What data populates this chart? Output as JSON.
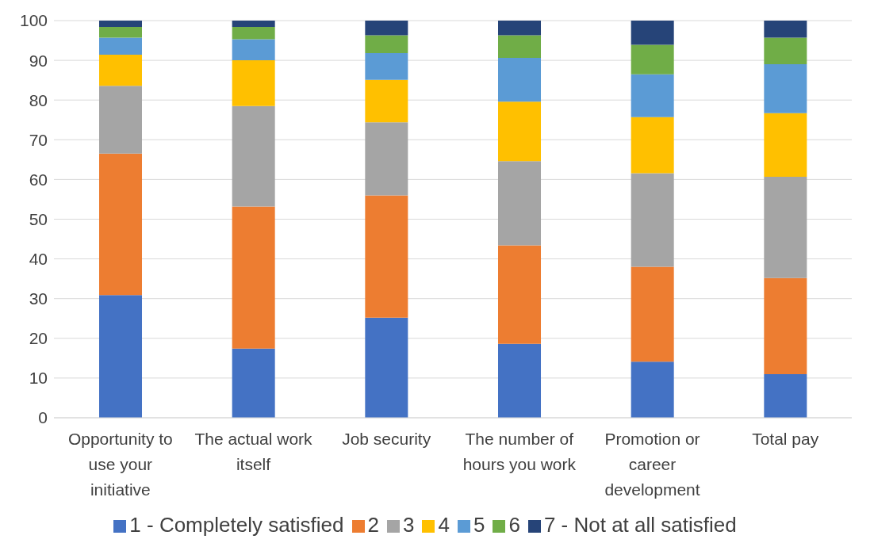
{
  "chart_data": {
    "type": "bar",
    "stacked": true,
    "categories": [
      "Opportunity to use your initiative",
      "The actual work itself",
      "Job security",
      "The number of hours you work",
      "Promotion or career development",
      "Total pay"
    ],
    "series": [
      {
        "name": "1 - Completely satisfied",
        "color": "#4472c4",
        "values": [
          30.9,
          17.4,
          25.2,
          18.6,
          14.1,
          11.0
        ]
      },
      {
        "name": "2",
        "color": "#ed7d31",
        "values": [
          35.6,
          35.8,
          30.8,
          24.8,
          23.9,
          24.2
        ]
      },
      {
        "name": "3",
        "color": "#a5a5a5",
        "values": [
          17.1,
          25.3,
          18.4,
          21.2,
          23.6,
          25.5
        ]
      },
      {
        "name": "4",
        "color": "#ffc000",
        "values": [
          7.8,
          11.5,
          10.7,
          15.0,
          14.1,
          16.0
        ]
      },
      {
        "name": "5",
        "color": "#5b9bd5",
        "values": [
          4.3,
          5.3,
          6.7,
          11.0,
          10.8,
          12.3
        ]
      },
      {
        "name": "6",
        "color": "#70ad47",
        "values": [
          2.7,
          3.1,
          4.5,
          5.7,
          7.4,
          6.7
        ]
      },
      {
        "name": "7 - Not at all satisfied",
        "color": "#264478",
        "values": [
          1.6,
          1.6,
          3.7,
          3.7,
          6.1,
          4.3
        ]
      }
    ],
    "ylim": [
      0,
      100
    ],
    "yticks": [
      0,
      10,
      20,
      30,
      40,
      50,
      60,
      70,
      80,
      90,
      100
    ],
    "grid": "y",
    "legend": "bottom"
  }
}
